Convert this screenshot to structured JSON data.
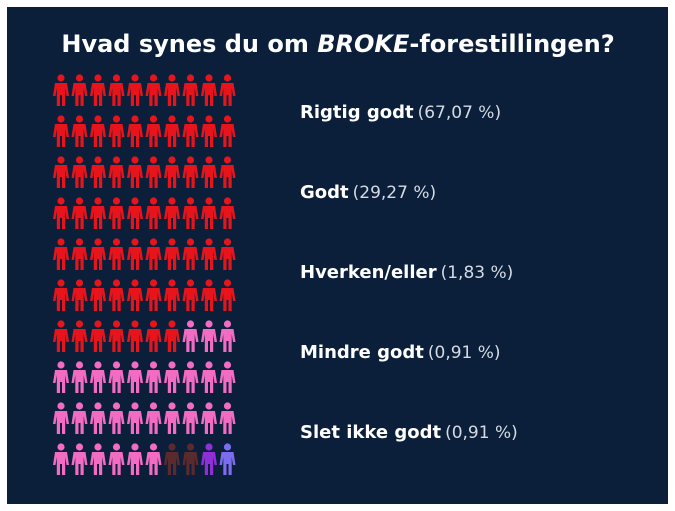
{
  "chart_data": {
    "type": "pictogram",
    "title": [
      "Hvad synes du om ",
      "BROKE",
      "-forestillingen?"
    ],
    "categories": [
      "Rigtig godt",
      "Godt",
      "Hverken/eller",
      "Mindre godt",
      "Slet ikke godt"
    ],
    "values": [
      67.07,
      29.27,
      1.83,
      0.91,
      0.91
    ],
    "value_labels": [
      "(67,07 %)",
      "(29,27 %)",
      "(1,83 %)",
      "(0,91 %)",
      "(0,91 %)"
    ],
    "colors": [
      "#e8141b",
      "#f26cc4",
      "#5b2a2c",
      "#8e2fd8",
      "#7b6cf0"
    ]
  }
}
